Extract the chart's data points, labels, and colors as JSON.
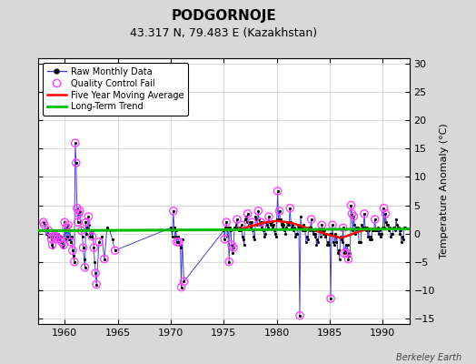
{
  "title": "PODGORNOJE",
  "subtitle": "43.317 N, 79.483 E (Kazakhstan)",
  "ylabel": "Temperature Anomaly (°C)",
  "watermark": "Berkeley Earth",
  "xlim": [
    1957.5,
    1992.5
  ],
  "ylim": [
    -16,
    31
  ],
  "yticks": [
    -15,
    -10,
    -5,
    0,
    5,
    10,
    15,
    20,
    25,
    30
  ],
  "xticks": [
    1960,
    1965,
    1970,
    1975,
    1980,
    1985,
    1990
  ],
  "bg_color": "#d8d8d8",
  "plot_bg": "#ffffff",
  "grid_color": "#cccccc",
  "raw_line_color": "#4444cc",
  "raw_dot_color": "#000000",
  "qc_color": "#ff44ff",
  "ma_color": "#ff0000",
  "trend_color": "#00bb00",
  "raw_data": [
    [
      1958.0,
      2.0
    ],
    [
      1958.083,
      1.5
    ],
    [
      1958.167,
      0.5
    ],
    [
      1958.25,
      0.0
    ],
    [
      1958.333,
      1.0
    ],
    [
      1958.417,
      -0.5
    ],
    [
      1958.5,
      0.5
    ],
    [
      1958.583,
      -0.5
    ],
    [
      1958.667,
      0.0
    ],
    [
      1958.75,
      -1.0
    ],
    [
      1958.833,
      -2.0
    ],
    [
      1958.917,
      -2.5
    ],
    [
      1959.0,
      -0.5
    ],
    [
      1959.083,
      0.5
    ],
    [
      1959.167,
      -0.5
    ],
    [
      1959.25,
      0.5
    ],
    [
      1959.333,
      -1.0
    ],
    [
      1959.417,
      0.0
    ],
    [
      1959.5,
      -0.5
    ],
    [
      1959.583,
      -1.0
    ],
    [
      1959.667,
      -0.5
    ],
    [
      1959.75,
      -1.5
    ],
    [
      1959.833,
      -2.5
    ],
    [
      1959.917,
      -2.0
    ],
    [
      1960.0,
      2.0
    ],
    [
      1960.083,
      -1.0
    ],
    [
      1960.167,
      1.0
    ],
    [
      1960.25,
      -0.5
    ],
    [
      1960.333,
      1.5
    ],
    [
      1960.417,
      -1.0
    ],
    [
      1960.5,
      0.5
    ],
    [
      1960.583,
      -1.5
    ],
    [
      1960.667,
      -0.5
    ],
    [
      1960.75,
      -3.0
    ],
    [
      1960.833,
      -4.0
    ],
    [
      1960.917,
      -5.0
    ],
    [
      1961.0,
      16.0
    ],
    [
      1961.083,
      12.5
    ],
    [
      1961.167,
      4.5
    ],
    [
      1961.25,
      2.0
    ],
    [
      1961.333,
      3.5
    ],
    [
      1961.417,
      4.0
    ],
    [
      1961.5,
      2.0
    ],
    [
      1961.583,
      0.5
    ],
    [
      1961.667,
      -0.5
    ],
    [
      1961.75,
      -2.5
    ],
    [
      1961.833,
      -4.5
    ],
    [
      1961.917,
      -6.0
    ],
    [
      1962.0,
      2.0
    ],
    [
      1962.083,
      0.0
    ],
    [
      1962.167,
      1.0
    ],
    [
      1962.25,
      3.0
    ],
    [
      1962.333,
      1.5
    ],
    [
      1962.417,
      -0.5
    ],
    [
      1962.5,
      0.5
    ],
    [
      1962.583,
      -0.5
    ],
    [
      1962.667,
      0.5
    ],
    [
      1962.75,
      -2.5
    ],
    [
      1962.833,
      -5.0
    ],
    [
      1962.917,
      -7.0
    ],
    [
      1963.0,
      -9.0
    ],
    [
      1963.25,
      -1.5
    ],
    [
      1963.5,
      -0.5
    ],
    [
      1963.75,
      -4.5
    ],
    [
      1964.0,
      1.0
    ],
    [
      1964.25,
      0.5
    ],
    [
      1964.5,
      -1.0
    ],
    [
      1964.75,
      -3.0
    ],
    [
      1970.0,
      1.0
    ],
    [
      1970.083,
      0.5
    ],
    [
      1970.167,
      -0.5
    ],
    [
      1970.25,
      4.0
    ],
    [
      1970.333,
      1.0
    ],
    [
      1970.417,
      -0.5
    ],
    [
      1970.5,
      0.5
    ],
    [
      1970.583,
      -1.5
    ],
    [
      1970.667,
      -0.5
    ],
    [
      1970.75,
      -1.5
    ],
    [
      1970.833,
      -2.0
    ],
    [
      1970.917,
      -2.5
    ],
    [
      1971.0,
      -9.5
    ],
    [
      1971.083,
      -1.0
    ],
    [
      1971.25,
      -8.5
    ],
    [
      1975.0,
      0.5
    ],
    [
      1975.083,
      -1.0
    ],
    [
      1975.167,
      1.0
    ],
    [
      1975.25,
      2.0
    ],
    [
      1975.333,
      -0.5
    ],
    [
      1975.417,
      1.0
    ],
    [
      1975.5,
      -5.0
    ],
    [
      1975.583,
      1.0
    ],
    [
      1975.667,
      0.5
    ],
    [
      1975.75,
      -2.0
    ],
    [
      1975.833,
      -3.5
    ],
    [
      1975.917,
      -2.5
    ],
    [
      1976.0,
      1.0
    ],
    [
      1976.083,
      1.0
    ],
    [
      1976.167,
      1.5
    ],
    [
      1976.25,
      2.5
    ],
    [
      1976.333,
      1.0
    ],
    [
      1976.417,
      0.5
    ],
    [
      1976.5,
      1.0
    ],
    [
      1976.583,
      0.5
    ],
    [
      1976.667,
      1.5
    ],
    [
      1976.75,
      -0.5
    ],
    [
      1976.833,
      -1.0
    ],
    [
      1976.917,
      -2.0
    ],
    [
      1977.0,
      2.5
    ],
    [
      1977.083,
      3.0
    ],
    [
      1977.167,
      2.0
    ],
    [
      1977.25,
      3.5
    ],
    [
      1977.333,
      1.5
    ],
    [
      1977.417,
      2.0
    ],
    [
      1977.5,
      1.5
    ],
    [
      1977.583,
      1.0
    ],
    [
      1977.667,
      2.0
    ],
    [
      1977.75,
      0.5
    ],
    [
      1977.833,
      -0.5
    ],
    [
      1977.917,
      -1.0
    ],
    [
      1978.0,
      3.0
    ],
    [
      1978.083,
      2.5
    ],
    [
      1978.167,
      1.5
    ],
    [
      1978.25,
      4.0
    ],
    [
      1978.333,
      2.5
    ],
    [
      1978.417,
      1.5
    ],
    [
      1978.5,
      2.0
    ],
    [
      1978.583,
      1.0
    ],
    [
      1978.667,
      2.0
    ],
    [
      1978.75,
      0.5
    ],
    [
      1978.833,
      -0.5
    ],
    [
      1978.917,
      0.0
    ],
    [
      1979.0,
      2.0
    ],
    [
      1979.083,
      1.5
    ],
    [
      1979.167,
      1.0
    ],
    [
      1979.25,
      3.0
    ],
    [
      1979.333,
      2.0
    ],
    [
      1979.417,
      1.5
    ],
    [
      1979.5,
      2.0
    ],
    [
      1979.583,
      1.0
    ],
    [
      1979.667,
      1.5
    ],
    [
      1979.75,
      0.5
    ],
    [
      1979.833,
      0.0
    ],
    [
      1979.917,
      -0.5
    ],
    [
      1980.0,
      2.5
    ],
    [
      1980.083,
      7.5
    ],
    [
      1980.167,
      2.5
    ],
    [
      1980.25,
      4.0
    ],
    [
      1980.333,
      2.5
    ],
    [
      1980.417,
      1.5
    ],
    [
      1980.5,
      2.0
    ],
    [
      1980.583,
      1.0
    ],
    [
      1980.667,
      1.5
    ],
    [
      1980.75,
      0.5
    ],
    [
      1980.833,
      0.0
    ],
    [
      1980.917,
      1.0
    ],
    [
      1981.0,
      2.0
    ],
    [
      1981.083,
      1.5
    ],
    [
      1981.167,
      1.5
    ],
    [
      1981.25,
      4.5
    ],
    [
      1981.333,
      2.0
    ],
    [
      1981.417,
      1.0
    ],
    [
      1981.5,
      1.5
    ],
    [
      1981.583,
      0.5
    ],
    [
      1981.667,
      1.0
    ],
    [
      1981.75,
      -0.5
    ],
    [
      1981.833,
      0.0
    ],
    [
      1981.917,
      0.0
    ],
    [
      1982.0,
      1.5
    ],
    [
      1982.083,
      1.0
    ],
    [
      1982.167,
      -14.5
    ],
    [
      1982.25,
      3.0
    ],
    [
      1982.333,
      1.0
    ],
    [
      1982.417,
      0.5
    ],
    [
      1982.5,
      1.5
    ],
    [
      1982.583,
      0.5
    ],
    [
      1982.667,
      0.5
    ],
    [
      1982.75,
      -1.5
    ],
    [
      1982.833,
      -0.5
    ],
    [
      1982.917,
      -1.0
    ],
    [
      1983.0,
      1.0
    ],
    [
      1983.083,
      0.5
    ],
    [
      1983.167,
      1.0
    ],
    [
      1983.25,
      2.5
    ],
    [
      1983.333,
      0.5
    ],
    [
      1983.417,
      0.0
    ],
    [
      1983.5,
      0.5
    ],
    [
      1983.583,
      -0.5
    ],
    [
      1983.667,
      0.0
    ],
    [
      1983.75,
      -2.0
    ],
    [
      1983.833,
      -1.0
    ],
    [
      1983.917,
      -1.5
    ],
    [
      1984.0,
      0.5
    ],
    [
      1984.083,
      0.5
    ],
    [
      1984.167,
      -0.5
    ],
    [
      1984.25,
      1.5
    ],
    [
      1984.333,
      0.5
    ],
    [
      1984.417,
      0.0
    ],
    [
      1984.5,
      0.5
    ],
    [
      1984.583,
      -0.5
    ],
    [
      1984.667,
      0.0
    ],
    [
      1984.75,
      -2.0
    ],
    [
      1984.833,
      -1.5
    ],
    [
      1984.917,
      -2.0
    ],
    [
      1985.0,
      0.0
    ],
    [
      1985.083,
      -11.5
    ],
    [
      1985.167,
      0.0
    ],
    [
      1985.25,
      1.5
    ],
    [
      1985.333,
      -1.5
    ],
    [
      1985.417,
      -2.0
    ],
    [
      1985.5,
      0.0
    ],
    [
      1985.583,
      -1.5
    ],
    [
      1985.667,
      -0.5
    ],
    [
      1985.75,
      -3.5
    ],
    [
      1985.833,
      -3.0
    ],
    [
      1985.917,
      -4.5
    ],
    [
      1986.0,
      -0.5
    ],
    [
      1986.083,
      -1.0
    ],
    [
      1986.167,
      -1.5
    ],
    [
      1986.25,
      1.0
    ],
    [
      1986.333,
      -3.5
    ],
    [
      1986.417,
      -3.0
    ],
    [
      1986.5,
      -2.0
    ],
    [
      1986.583,
      -3.5
    ],
    [
      1986.667,
      -2.0
    ],
    [
      1986.75,
      -4.5
    ],
    [
      1986.833,
      -4.0
    ],
    [
      1986.917,
      -3.5
    ],
    [
      1987.0,
      5.0
    ],
    [
      1987.083,
      3.5
    ],
    [
      1987.167,
      0.5
    ],
    [
      1987.25,
      3.0
    ],
    [
      1987.333,
      1.5
    ],
    [
      1987.417,
      0.0
    ],
    [
      1987.5,
      1.0
    ],
    [
      1987.583,
      0.5
    ],
    [
      1987.667,
      1.0
    ],
    [
      1987.75,
      -1.5
    ],
    [
      1987.833,
      -1.5
    ],
    [
      1987.917,
      -1.5
    ],
    [
      1988.0,
      1.5
    ],
    [
      1988.083,
      1.0
    ],
    [
      1988.167,
      1.0
    ],
    [
      1988.25,
      3.5
    ],
    [
      1988.333,
      1.0
    ],
    [
      1988.417,
      0.5
    ],
    [
      1988.5,
      1.0
    ],
    [
      1988.583,
      -0.5
    ],
    [
      1988.667,
      0.5
    ],
    [
      1988.75,
      -1.0
    ],
    [
      1988.833,
      -0.5
    ],
    [
      1988.917,
      -1.0
    ],
    [
      1989.0,
      0.5
    ],
    [
      1989.083,
      0.5
    ],
    [
      1989.167,
      0.5
    ],
    [
      1989.25,
      2.5
    ],
    [
      1989.333,
      0.5
    ],
    [
      1989.417,
      0.5
    ],
    [
      1989.5,
      1.0
    ],
    [
      1989.583,
      0.0
    ],
    [
      1989.667,
      0.5
    ],
    [
      1989.75,
      -0.5
    ],
    [
      1989.833,
      0.0
    ],
    [
      1989.917,
      0.0
    ],
    [
      1990.0,
      1.0
    ],
    [
      1990.083,
      4.5
    ],
    [
      1990.167,
      1.0
    ],
    [
      1990.25,
      3.5
    ],
    [
      1990.333,
      2.0
    ],
    [
      1990.417,
      1.5
    ],
    [
      1990.5,
      1.5
    ],
    [
      1990.583,
      0.5
    ],
    [
      1990.667,
      1.0
    ],
    [
      1990.75,
      -0.5
    ],
    [
      1990.833,
      0.0
    ],
    [
      1990.917,
      0.0
    ],
    [
      1991.0,
      1.0
    ],
    [
      1991.083,
      1.0
    ],
    [
      1991.167,
      0.5
    ],
    [
      1991.25,
      2.5
    ],
    [
      1991.333,
      1.5
    ],
    [
      1991.417,
      1.0
    ],
    [
      1991.5,
      1.0
    ],
    [
      1991.583,
      0.0
    ],
    [
      1991.667,
      0.5
    ],
    [
      1991.75,
      -1.5
    ],
    [
      1991.833,
      -0.5
    ],
    [
      1991.917,
      -1.0
    ],
    [
      1992.0,
      1.0
    ],
    [
      1992.083,
      1.0
    ]
  ],
  "qc_fail": [
    [
      1958.0,
      2.0
    ],
    [
      1958.083,
      1.5
    ],
    [
      1958.5,
      0.5
    ],
    [
      1958.75,
      -1.0
    ],
    [
      1958.833,
      -2.0
    ],
    [
      1959.0,
      -0.5
    ],
    [
      1959.167,
      -0.5
    ],
    [
      1959.333,
      -1.0
    ],
    [
      1959.583,
      -1.0
    ],
    [
      1959.75,
      -1.5
    ],
    [
      1959.917,
      -2.0
    ],
    [
      1960.0,
      2.0
    ],
    [
      1960.167,
      1.0
    ],
    [
      1960.333,
      1.5
    ],
    [
      1960.583,
      -1.5
    ],
    [
      1960.75,
      -3.0
    ],
    [
      1960.917,
      -5.0
    ],
    [
      1961.0,
      16.0
    ],
    [
      1961.083,
      12.5
    ],
    [
      1961.167,
      4.5
    ],
    [
      1961.25,
      2.0
    ],
    [
      1961.333,
      3.5
    ],
    [
      1961.417,
      4.0
    ],
    [
      1961.583,
      0.5
    ],
    [
      1961.75,
      -2.5
    ],
    [
      1961.917,
      -6.0
    ],
    [
      1962.0,
      2.0
    ],
    [
      1962.25,
      3.0
    ],
    [
      1962.583,
      -0.5
    ],
    [
      1962.75,
      -2.5
    ],
    [
      1962.917,
      -7.0
    ],
    [
      1963.0,
      -9.0
    ],
    [
      1963.25,
      -1.5
    ],
    [
      1963.75,
      -4.5
    ],
    [
      1964.75,
      -3.0
    ],
    [
      1970.25,
      4.0
    ],
    [
      1970.583,
      -1.5
    ],
    [
      1970.75,
      -1.5
    ],
    [
      1971.0,
      -9.5
    ],
    [
      1971.25,
      -8.5
    ],
    [
      1975.083,
      -1.0
    ],
    [
      1975.25,
      2.0
    ],
    [
      1975.5,
      -5.0
    ],
    [
      1975.75,
      -2.0
    ],
    [
      1975.917,
      -2.5
    ],
    [
      1976.25,
      2.5
    ],
    [
      1976.667,
      1.5
    ],
    [
      1977.25,
      3.5
    ],
    [
      1977.667,
      2.0
    ],
    [
      1978.25,
      4.0
    ],
    [
      1978.5,
      2.0
    ],
    [
      1979.25,
      3.0
    ],
    [
      1980.083,
      7.5
    ],
    [
      1980.25,
      4.0
    ],
    [
      1981.25,
      4.5
    ],
    [
      1982.167,
      -14.5
    ],
    [
      1983.25,
      2.5
    ],
    [
      1984.25,
      1.5
    ],
    [
      1985.083,
      -11.5
    ],
    [
      1985.25,
      1.5
    ],
    [
      1986.25,
      1.0
    ],
    [
      1986.333,
      -3.5
    ],
    [
      1986.583,
      -3.5
    ],
    [
      1986.75,
      -4.5
    ],
    [
      1987.0,
      5.0
    ],
    [
      1987.083,
      3.5
    ],
    [
      1987.25,
      3.0
    ],
    [
      1988.25,
      3.5
    ],
    [
      1989.25,
      2.5
    ],
    [
      1990.083,
      4.5
    ],
    [
      1990.25,
      3.5
    ]
  ],
  "moving_avg": [
    [
      1976.5,
      0.8
    ],
    [
      1977.0,
      1.0
    ],
    [
      1977.5,
      1.3
    ],
    [
      1978.0,
      1.5
    ],
    [
      1978.5,
      1.8
    ],
    [
      1979.0,
      2.0
    ],
    [
      1979.5,
      2.1
    ],
    [
      1980.0,
      2.2
    ],
    [
      1980.5,
      2.1
    ],
    [
      1981.0,
      2.0
    ],
    [
      1981.5,
      1.8
    ],
    [
      1982.0,
      1.5
    ],
    [
      1982.5,
      1.2
    ],
    [
      1983.0,
      0.9
    ],
    [
      1983.5,
      0.6
    ],
    [
      1984.0,
      0.3
    ],
    [
      1984.5,
      0.0
    ],
    [
      1985.0,
      -0.3
    ],
    [
      1985.5,
      -0.5
    ],
    [
      1986.0,
      -0.8
    ],
    [
      1986.5,
      -0.5
    ],
    [
      1987.0,
      -0.2
    ],
    [
      1987.5,
      0.2
    ],
    [
      1988.0,
      0.5
    ],
    [
      1988.5,
      0.7
    ],
    [
      1989.0,
      0.8
    ]
  ],
  "trend_x": [
    1957.5,
    1992.5
  ],
  "trend_y": [
    0.5,
    0.8
  ],
  "title_fontsize": 11,
  "subtitle_fontsize": 9,
  "tick_labelsize": 8,
  "ylabel_fontsize": 8,
  "legend_fontsize": 7,
  "watermark_fontsize": 7
}
